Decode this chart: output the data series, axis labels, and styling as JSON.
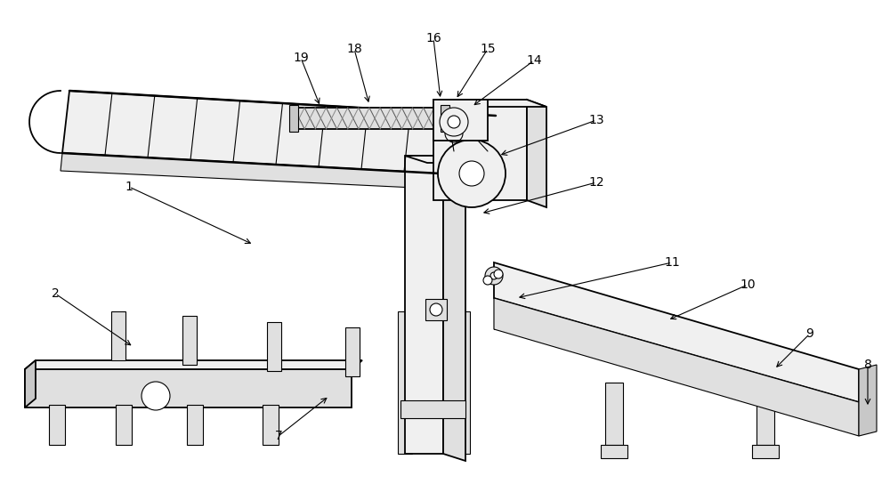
{
  "background_color": "#ffffff",
  "line_color": "#000000",
  "lw_main": 1.3,
  "lw_thin": 0.8,
  "fc_light": "#f0f0f0",
  "fc_mid": "#e0e0e0",
  "fc_dark": "#c8c8c8",
  "figsize": [
    10.0,
    5.44
  ],
  "dpi": 100
}
